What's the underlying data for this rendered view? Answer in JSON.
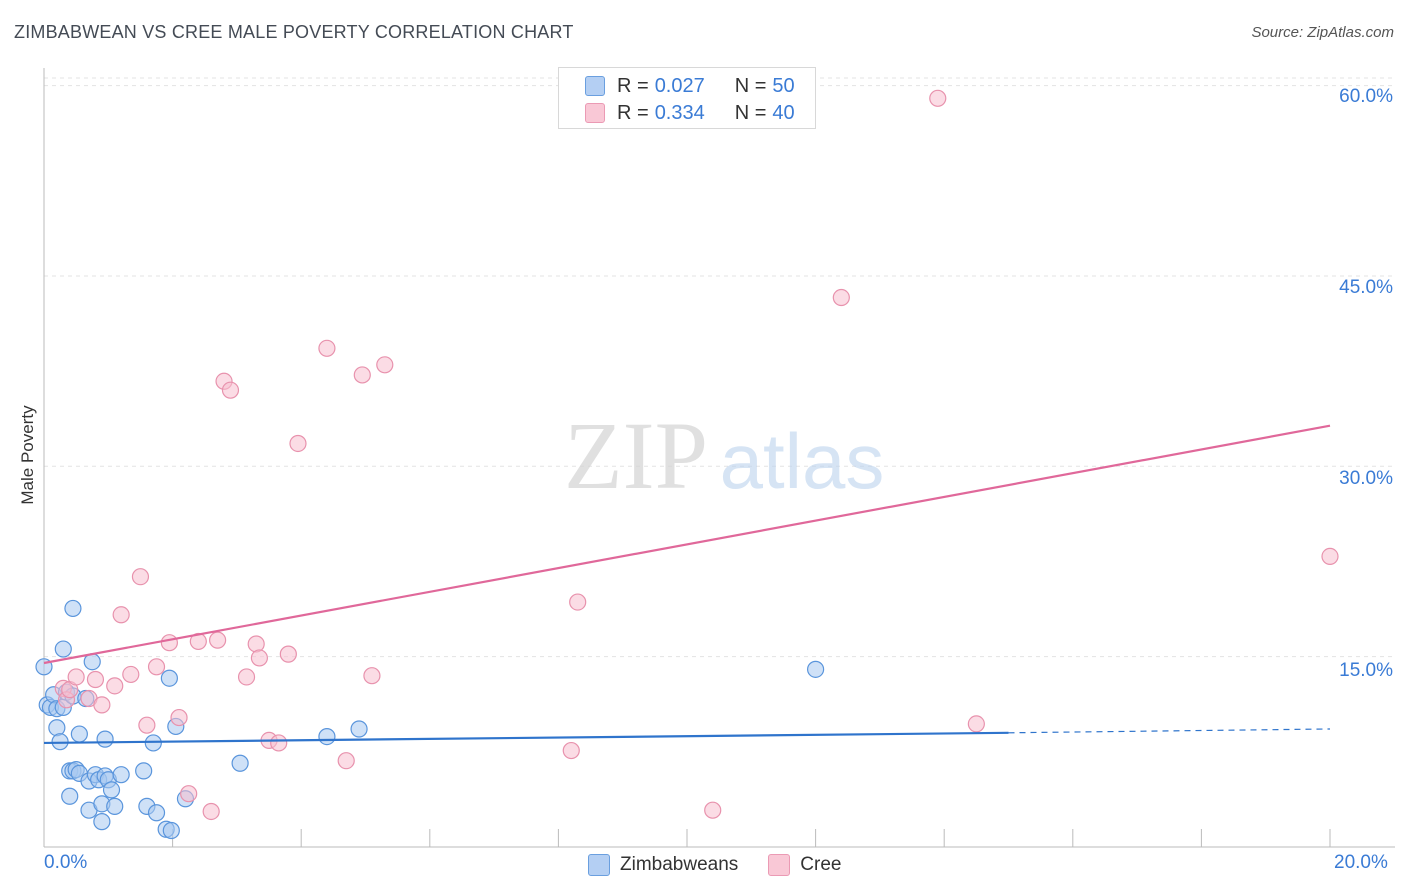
{
  "title": "ZIMBABWEAN VS CREE MALE POVERTY CORRELATION CHART",
  "source": "Source: ZipAtlas.com",
  "watermark": {
    "zip": "ZIP",
    "atlas": "atlas"
  },
  "legend": {
    "rows": [
      {
        "r_label": "R =",
        "r_value": "0.027",
        "n_label": "N =",
        "n_value": "50"
      },
      {
        "r_label": "R =",
        "r_value": "0.334",
        "n_label": "N =",
        "n_value": "40"
      }
    ]
  },
  "colors": {
    "blue_fill": "#a8c8f0",
    "blue_stroke": "#5a95dc",
    "blue_line": "#2f74cc",
    "pink_fill": "#f7bfd0",
    "pink_stroke": "#e892ad",
    "pink_line": "#e0689a",
    "accent_text": "#3a7bd5",
    "grid": "#e3e3e3"
  },
  "chart_data": {
    "type": "scatter",
    "title": "ZIMBABWEAN VS CREE MALE POVERTY CORRELATION CHART",
    "xlabel": "",
    "ylabel": "Male Poverty",
    "xlim": [
      0,
      20
    ],
    "ylim": [
      0,
      60.6
    ],
    "x_tick_labels": [
      "0.0%",
      "20.0%"
    ],
    "y_ticks": [
      15,
      30,
      45,
      60
    ],
    "y_tick_labels": [
      "15.0%",
      "30.0%",
      "45.0%",
      "60.0%"
    ],
    "grid": true,
    "series": [
      {
        "name": "Zimbabweans",
        "color": "#5a95dc",
        "r": 0.027,
        "n": 50,
        "trend": {
          "x0": 0,
          "y0": 8.2,
          "x1": 15.0,
          "y1": 9.0,
          "dash_to_x": 20,
          "dash_to_y": 9.3
        },
        "points": [
          [
            0.0,
            14.2
          ],
          [
            0.05,
            11.2
          ],
          [
            0.1,
            11.0
          ],
          [
            0.15,
            12.0
          ],
          [
            0.2,
            10.9
          ],
          [
            0.2,
            9.4
          ],
          [
            0.25,
            8.3
          ],
          [
            0.3,
            15.6
          ],
          [
            0.3,
            11.0
          ],
          [
            0.35,
            12.2
          ],
          [
            0.4,
            6.0
          ],
          [
            0.4,
            4.0
          ],
          [
            0.45,
            6.0
          ],
          [
            0.45,
            11.9
          ],
          [
            0.45,
            18.8
          ],
          [
            0.5,
            6.1
          ],
          [
            0.55,
            5.8
          ],
          [
            0.55,
            8.9
          ],
          [
            0.65,
            11.7
          ],
          [
            0.7,
            5.2
          ],
          [
            0.7,
            2.9
          ],
          [
            0.75,
            14.6
          ],
          [
            0.8,
            5.7
          ],
          [
            0.85,
            5.3
          ],
          [
            0.9,
            3.4
          ],
          [
            0.9,
            2.0
          ],
          [
            0.95,
            5.6
          ],
          [
            0.95,
            8.5
          ],
          [
            1.0,
            5.3
          ],
          [
            1.05,
            4.5
          ],
          [
            1.1,
            3.2
          ],
          [
            1.2,
            5.7
          ],
          [
            1.55,
            6.0
          ],
          [
            1.6,
            3.2
          ],
          [
            1.7,
            8.2
          ],
          [
            1.75,
            2.7
          ],
          [
            1.9,
            1.4
          ],
          [
            1.95,
            13.3
          ],
          [
            1.98,
            1.3
          ],
          [
            2.05,
            9.5
          ],
          [
            2.2,
            3.8
          ],
          [
            3.05,
            6.6
          ],
          [
            4.4,
            8.7
          ],
          [
            4.9,
            9.3
          ],
          [
            12.0,
            14.0
          ]
        ]
      },
      {
        "name": "Cree",
        "color": "#e892ad",
        "r": 0.334,
        "n": 40,
        "trend": {
          "x0": 0,
          "y0": 14.5,
          "x1": 20,
          "y1": 33.2
        },
        "points": [
          [
            0.3,
            12.5
          ],
          [
            0.35,
            11.6
          ],
          [
            0.4,
            12.4
          ],
          [
            0.5,
            13.4
          ],
          [
            0.7,
            11.7
          ],
          [
            0.8,
            13.2
          ],
          [
            0.9,
            11.2
          ],
          [
            1.1,
            12.7
          ],
          [
            1.2,
            18.3
          ],
          [
            1.35,
            13.6
          ],
          [
            1.5,
            21.3
          ],
          [
            1.6,
            9.6
          ],
          [
            1.75,
            14.2
          ],
          [
            1.95,
            16.1
          ],
          [
            2.1,
            10.2
          ],
          [
            2.25,
            4.2
          ],
          [
            2.4,
            16.2
          ],
          [
            2.6,
            2.8
          ],
          [
            2.7,
            16.3
          ],
          [
            2.8,
            36.7
          ],
          [
            2.9,
            36.0
          ],
          [
            3.15,
            13.4
          ],
          [
            3.3,
            16.0
          ],
          [
            3.35,
            14.9
          ],
          [
            3.5,
            8.4
          ],
          [
            3.65,
            8.2
          ],
          [
            3.8,
            15.2
          ],
          [
            3.95,
            31.8
          ],
          [
            4.4,
            39.3
          ],
          [
            4.7,
            6.8
          ],
          [
            4.95,
            37.2
          ],
          [
            5.1,
            13.5
          ],
          [
            5.3,
            38.0
          ],
          [
            8.2,
            7.6
          ],
          [
            8.3,
            19.3
          ],
          [
            10.4,
            2.9
          ],
          [
            12.4,
            43.3
          ],
          [
            13.9,
            59.0
          ],
          [
            14.5,
            9.7
          ],
          [
            20.0,
            22.9
          ]
        ]
      }
    ]
  }
}
